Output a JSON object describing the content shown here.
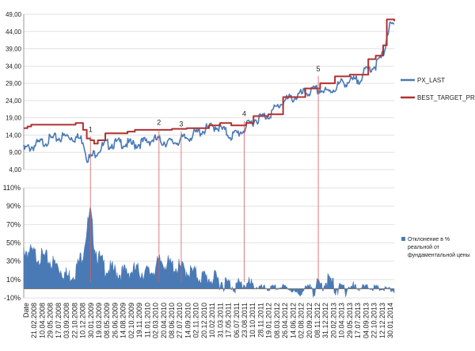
{
  "chart_data": [
    {
      "type": "line",
      "ylim": [
        4,
        49
      ],
      "y_ticks": [
        "4,00",
        "9,00",
        "14,00",
        "19,00",
        "24,00",
        "29,00",
        "34,00",
        "39,00",
        "44,00",
        "49,00"
      ],
      "gridlines": true,
      "legend_position": "right",
      "series": [
        {
          "name": "PX_LAST",
          "color": "#4a7ab5",
          "x": [
            0,
            0.07,
            0.12,
            0.16,
            0.17,
            0.18,
            0.195,
            0.22,
            0.26,
            0.3,
            0.35,
            0.4,
            0.44,
            0.48,
            0.52,
            0.56,
            0.59,
            0.62,
            0.64,
            0.66,
            0.7,
            0.76,
            0.8,
            0.82,
            0.86,
            0.9,
            0.93,
            0.95,
            0.97,
            0.985,
            1.0
          ],
          "values": [
            10.5,
            13.5,
            14.5,
            13.5,
            8.5,
            8.0,
            10.0,
            12.0,
            12.5,
            12.0,
            13.5,
            12.5,
            14.0,
            16.0,
            17.5,
            14.5,
            16.0,
            19.0,
            20.0,
            20.5,
            24.5,
            27.0,
            28.0,
            27.0,
            30.0,
            30.5,
            34.0,
            35.0,
            38.0,
            46.0,
            46.5
          ]
        },
        {
          "name": "BEST_TARGET_PRICE",
          "color": "#b03030",
          "x": [
            0,
            0.01,
            0.02,
            0.14,
            0.16,
            0.17,
            0.18,
            0.19,
            0.2,
            0.22,
            0.28,
            0.3,
            0.4,
            0.44,
            0.5,
            0.53,
            0.56,
            0.6,
            0.62,
            0.66,
            0.7,
            0.76,
            0.8,
            0.84,
            0.88,
            0.9,
            0.93,
            0.95,
            0.97,
            0.98,
            1.0
          ],
          "values": [
            16.0,
            16.5,
            17.0,
            17.5,
            15.5,
            13.0,
            12.5,
            11.5,
            12.5,
            14.5,
            15.0,
            15.5,
            15.8,
            16.0,
            16.8,
            17.5,
            16.8,
            17.5,
            19.5,
            20.0,
            25.0,
            27.5,
            29.0,
            31.0,
            31.5,
            31.5,
            36.0,
            37.0,
            40.0,
            47.5,
            47.0
          ]
        }
      ],
      "annotations": [
        {
          "label": "1",
          "x": 0.18,
          "y": 14.5
        },
        {
          "label": "2",
          "x": 0.365,
          "y": 16.5
        },
        {
          "label": "3",
          "x": 0.425,
          "y": 16.0
        },
        {
          "label": "4",
          "x": 0.595,
          "y": 19.0
        },
        {
          "label": "5",
          "x": 0.795,
          "y": 32.0
        }
      ]
    },
    {
      "type": "area",
      "ylim": [
        -10,
        110
      ],
      "y_ticks": [
        "110%",
        "90%",
        "70%",
        "50%",
        "30%",
        "10%",
        "-10%"
      ],
      "gridlines": true,
      "legend_position": "right",
      "series": [
        {
          "name": "Отклонение в % реальной от фундаментальной цены",
          "color": "#4a7ab5",
          "x": [
            0,
            0.03,
            0.06,
            0.09,
            0.12,
            0.14,
            0.16,
            0.17,
            0.18,
            0.19,
            0.2,
            0.22,
            0.26,
            0.3,
            0.34,
            0.37,
            0.4,
            0.44,
            0.48,
            0.52,
            0.55,
            0.58,
            0.6,
            0.62,
            0.64,
            0.66,
            0.7,
            0.72,
            0.74,
            0.76,
            0.8,
            0.82,
            0.84,
            0.86,
            0.88,
            0.9,
            0.93,
            0.96,
            0.98,
            1.0
          ],
          "values": [
            48,
            42,
            38,
            30,
            18,
            25,
            45,
            70,
            88,
            55,
            40,
            28,
            22,
            25,
            22,
            35,
            30,
            25,
            18,
            15,
            10,
            8,
            12,
            5,
            3,
            2,
            4,
            2,
            -5,
            2,
            8,
            15,
            6,
            4,
            8,
            3,
            4,
            2,
            1,
            0
          ]
        }
      ],
      "x_tick_labels": [
        "Date",
        "21.02.2008",
        "10.04.2008",
        "29.05.2008",
        "17.07.2008",
        "03.09.2008",
        "22.10.2008",
        "10.12.2008",
        "30.01.2009",
        "19.03.2009",
        "08.05.2009",
        "26.06.2009",
        "14.08.2009",
        "02.10.2009",
        "19.11.2009",
        "11.01.2010",
        "02.03.2010",
        "20.04.2010",
        "08.06.2010",
        "27.07.2010",
        "14.09.2010",
        "02.11.2010",
        "20.12.2010",
        "10.02.2011",
        "31.03.2011",
        "17.05.2011",
        "06.07.2011",
        "23.08.2011",
        "10.10.2011",
        "28.11.2011",
        "19.01.2012",
        "08.03.2012",
        "26.04.2012",
        "14.06.2012",
        "02.08.2012",
        "20.09.2012",
        "08.11.2012",
        "31.12.2012",
        "20.02.2013",
        "10.04.2013",
        "29.05.2013",
        "17.07.2013",
        "04.09.2013",
        "22.10.2013",
        "12.12.2013",
        "30.01.2014"
      ]
    }
  ],
  "legend": {
    "px_last": "PX_LAST",
    "best_target_price": "BEST_TARGET_PRICE",
    "deviation": "Отклонение в % реальной от фундаментальной цены"
  }
}
